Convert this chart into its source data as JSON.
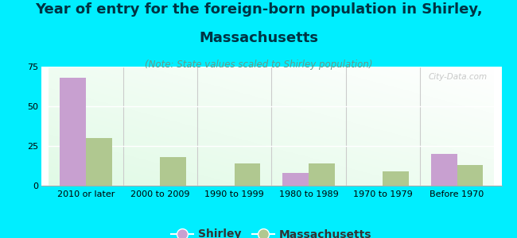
{
  "title_line1": "Year of entry for the foreign-born population in Shirley,",
  "title_line2": "Massachusetts",
  "subtitle": "(Note: State values scaled to Shirley population)",
  "categories": [
    "2010 or later",
    "2000 to 2009",
    "1990 to 1999",
    "1980 to 1989",
    "1970 to 1979",
    "Before 1970"
  ],
  "shirley_values": [
    68,
    0,
    0,
    8,
    0,
    20
  ],
  "mass_values": [
    30,
    18,
    14,
    14,
    9,
    13
  ],
  "shirley_color": "#c8a0d0",
  "mass_color": "#b0c890",
  "background_color": "#00eeff",
  "ylim": [
    0,
    75
  ],
  "yticks": [
    0,
    25,
    50,
    75
  ],
  "bar_width": 0.35,
  "title_fontsize": 13,
  "subtitle_fontsize": 8.5,
  "legend_fontsize": 10,
  "tick_fontsize": 8,
  "watermark_text": "City-Data.com",
  "title_color": "#003344"
}
